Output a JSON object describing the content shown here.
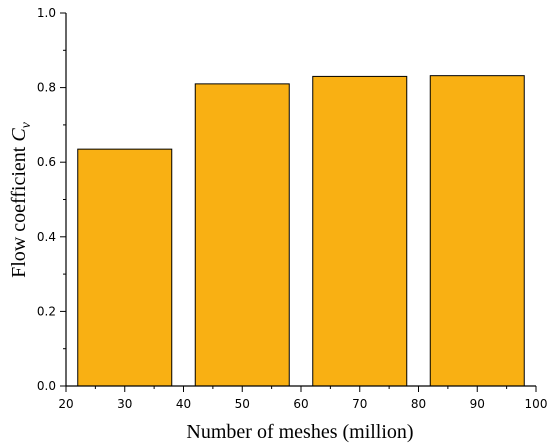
{
  "chart_data": {
    "type": "bar",
    "x": [
      30,
      50,
      70,
      90
    ],
    "values": [
      0.635,
      0.81,
      0.83,
      0.832
    ],
    "bar_width": 16,
    "xlabel": "Number of meshes (million)",
    "ylabel_main": "Flow coefficient ",
    "ylabel_symbol": "C",
    "ylabel_subscript": "v",
    "xlim": [
      20,
      100
    ],
    "ylim": [
      0,
      1.0
    ],
    "xticks": [
      "20",
      "30",
      "40",
      "50",
      "60",
      "70",
      "80",
      "90",
      "100"
    ],
    "yticks": [
      "0.0",
      "0.2",
      "0.4",
      "0.6",
      "0.8",
      "1.0"
    ],
    "bar_color": "#F9B013",
    "bar_edge_color": "#000000",
    "grid": false
  }
}
